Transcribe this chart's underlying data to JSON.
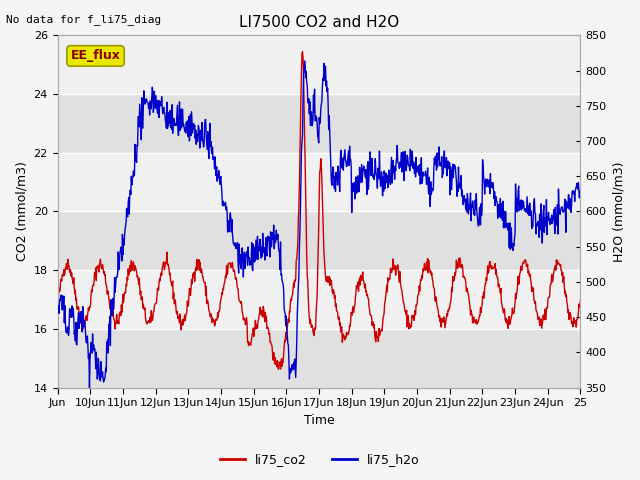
{
  "title": "LI7500 CO2 and H2O",
  "top_left_text": "No data for f_li75_diag",
  "xlabel": "Time",
  "ylabel_left": "CO2 (mmol/m3)",
  "ylabel_right": "H2O (mmol/m3)",
  "ylim_left": [
    14,
    26
  ],
  "ylim_right": [
    350,
    850
  ],
  "yticks_left": [
    14,
    16,
    18,
    20,
    22,
    24,
    26
  ],
  "yticks_right": [
    350,
    400,
    450,
    500,
    550,
    600,
    650,
    700,
    750,
    800,
    850
  ],
  "xtick_labels": [
    "Jun",
    "10Jun",
    "11Jun",
    "12Jun",
    "13Jun",
    "14Jun",
    "15Jun",
    "16Jun",
    "17Jun",
    "18Jun",
    "19Jun",
    "20Jun",
    "21Jun",
    "22Jun",
    "23Jun",
    "24Jun",
    "25"
  ],
  "annotation_box": "EE_flux",
  "annotation_box_facecolor": "#e8e800",
  "annotation_box_edgecolor": "#999900",
  "annotation_text_color": "#8b0000",
  "fig_bg_color": "#f5f5f5",
  "band_light": "#f0f0f0",
  "band_dark": "#e0e0e0",
  "co2_color": "#cc0000",
  "h2o_color": "#0000cc",
  "legend_label_co2": "li75_co2",
  "legend_label_h2o": "li75_h2o",
  "font_size_ticks": 8,
  "font_size_labels": 9,
  "font_size_title": 11
}
